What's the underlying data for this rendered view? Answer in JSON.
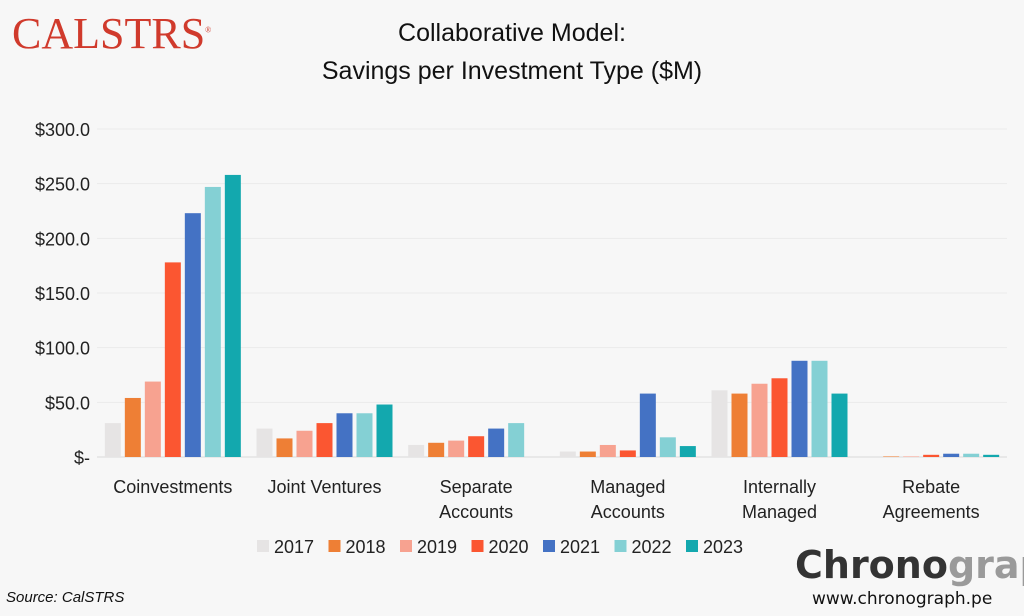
{
  "logo_text": "CALSTRS",
  "title_line1": "Collaborative Model:",
  "title_line2": "Savings per Investment Type ($M)",
  "source": "Source: CalSTRS",
  "brand": {
    "part1": "Chrono",
    "part2": "graph",
    "url": "www.chronograph.pe"
  },
  "chart_data": {
    "type": "bar",
    "title": "Collaborative Model: Savings per Investment Type ($M)",
    "xlabel": "",
    "ylabel": "",
    "ylim": [
      0,
      300
    ],
    "yticks": [
      0,
      50,
      100,
      150,
      200,
      250,
      300
    ],
    "ytick_labels": [
      "$-",
      "$50.0",
      "$100.0",
      "$150.0",
      "$200.0",
      "$250.0",
      "$300.0"
    ],
    "grid": true,
    "legend_position": "bottom",
    "categories": [
      [
        "Coinvestments"
      ],
      [
        "Joint Ventures"
      ],
      [
        "Separate",
        "Accounts"
      ],
      [
        "Managed",
        "Accounts"
      ],
      [
        "Internally",
        "Managed"
      ],
      [
        "Rebate",
        "Agreements"
      ]
    ],
    "series": [
      {
        "name": "2017",
        "color": "#e6e4e4",
        "values": [
          31,
          26,
          11,
          5,
          61,
          0
        ]
      },
      {
        "name": "2018",
        "color": "#ee7f35",
        "values": [
          54,
          17,
          13,
          5,
          58,
          0.5
        ]
      },
      {
        "name": "2019",
        "color": "#f7a290",
        "values": [
          69,
          24,
          15,
          11,
          67,
          0.5
        ]
      },
      {
        "name": "2020",
        "color": "#fb5631",
        "values": [
          178,
          31,
          19,
          6,
          72,
          2
        ]
      },
      {
        "name": "2021",
        "color": "#4472c4",
        "values": [
          223,
          40,
          26,
          58,
          88,
          3
        ]
      },
      {
        "name": "2022",
        "color": "#84d0d4",
        "values": [
          247,
          40,
          31,
          18,
          88,
          3
        ]
      },
      {
        "name": "2023",
        "color": "#13a8ae",
        "values": [
          258,
          48,
          0,
          10,
          58,
          2
        ]
      }
    ]
  }
}
